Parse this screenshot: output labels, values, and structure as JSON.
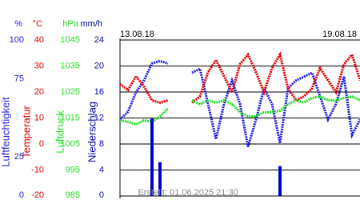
{
  "chart_data": {
    "type": "line",
    "dates": [
      "13.08.18",
      "19.08.18"
    ],
    "footer": "Erstellt: 01.06.2025 21:30",
    "xlim": [
      0,
      30
    ],
    "x": [
      0,
      1,
      2,
      3,
      4,
      5,
      6,
      7,
      8,
      9,
      10,
      11,
      12,
      13,
      14,
      15,
      16,
      17,
      18,
      19,
      20,
      21,
      22,
      23,
      24,
      25,
      26,
      27,
      28,
      29,
      30
    ],
    "grid": true,
    "axes": [
      {
        "unit": "%",
        "title": "Luftfeuchtigkeit",
        "color": "#2020e0",
        "ylim": [
          0,
          100
        ],
        "yticks": [
          0,
          25,
          75,
          100
        ]
      },
      {
        "unit": "°C",
        "title": "Temperatur",
        "color": "#e00000",
        "ylim": [
          -20,
          40
        ],
        "yticks": [
          -20,
          -10,
          0,
          10,
          20,
          30,
          40
        ]
      },
      {
        "unit": "hPa",
        "title": "Luftdruck",
        "color": "#22dd22",
        "ylim": [
          985,
          1045
        ],
        "yticks": [
          985,
          995,
          1005,
          1015,
          1025,
          1035,
          1045
        ]
      },
      {
        "unit": "mm/h",
        "title": "Niederschlag",
        "color": "#0000aa",
        "ylim": [
          0,
          24
        ],
        "yticks": [
          0,
          4,
          8,
          12,
          16,
          20,
          24
        ]
      }
    ],
    "series": [
      {
        "kind": "line",
        "axis": 0,
        "color": "#2020e0",
        "values": [
          49,
          54,
          66.5,
          74,
          85,
          86.5,
          85,
          null,
          null,
          79,
          81.5,
          59,
          36.5,
          59,
          74,
          59,
          31.5,
          49,
          69,
          59,
          34,
          69,
          74,
          76.5,
          79,
          64,
          49,
          59,
          76.5,
          39,
          49
        ]
      },
      {
        "kind": "line",
        "axis": 1,
        "color": "#e00000",
        "values": [
          23.0,
          20.8,
          26.1,
          22.1,
          16.8,
          15.9,
          16.8,
          null,
          null,
          15.9,
          18.3,
          27.6,
          32.3,
          26.1,
          19.9,
          30.7,
          34.4,
          27.6,
          19.9,
          29.2,
          34.4,
          21.4,
          16.8,
          18.3,
          21.4,
          29.2,
          24.5,
          19.9,
          30.7,
          34.4,
          24.5
        ]
      },
      {
        "kind": "line",
        "axis": 2,
        "color": "#22dd22",
        "values": [
          1014.1,
          1013.5,
          1012.5,
          1014.1,
          1013.5,
          1015.6,
          1018.7,
          null,
          null,
          1021.8,
          1020.3,
          1021.8,
          1020.9,
          1021.8,
          1020.3,
          1017.2,
          1015.6,
          1015.6,
          1017.2,
          1017.2,
          1017.8,
          1020.3,
          1021.8,
          1020.9,
          1022.7,
          1023.3,
          1021.8,
          1021.8,
          1022.7,
          1023.3,
          1021.8
        ]
      },
      {
        "kind": "bar",
        "axis": 3,
        "color": "#0000cc",
        "values": [
          0,
          0,
          0,
          0,
          11.9,
          5.2,
          0,
          0,
          0,
          0,
          0,
          0,
          0,
          0,
          0,
          0,
          0,
          0,
          0,
          0,
          4.6,
          0,
          0,
          0,
          0,
          0,
          0,
          0,
          0,
          0,
          0
        ]
      }
    ]
  }
}
